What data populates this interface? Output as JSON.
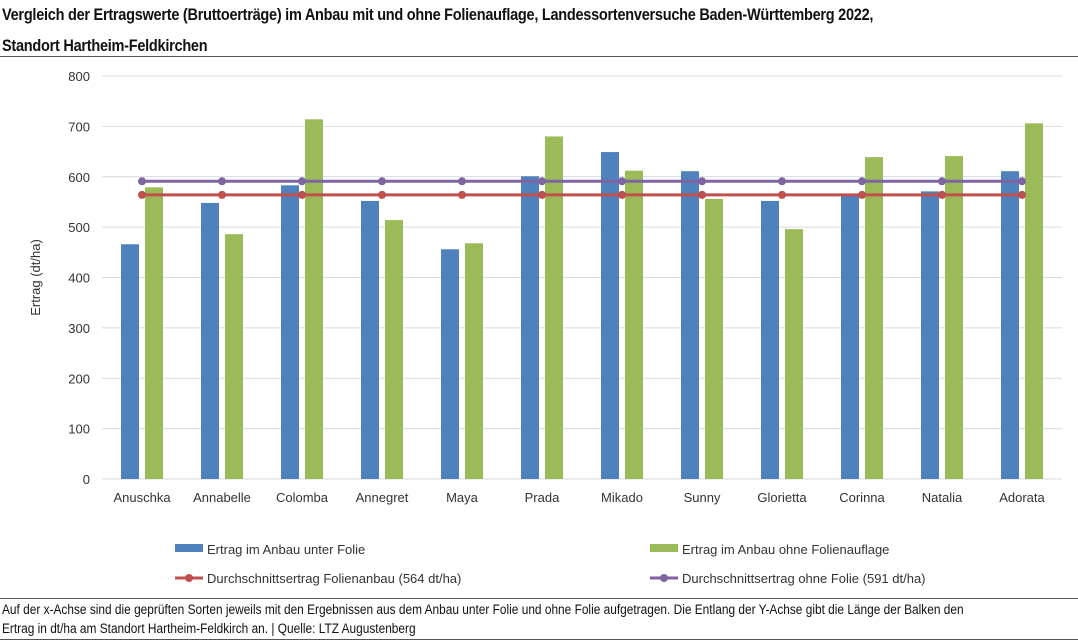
{
  "header": {
    "title_line1": "Vergleich der Ertragswerte (Bruttoerträge) im Anbau mit und ohne Folienauflage, Landessortenversuche Baden-Württemberg 2022,",
    "title_line2": "Standort Hartheim-Feldkirchen"
  },
  "caption": {
    "line1": "Auf der x-Achse sind die geprüften Sorten jeweils mit den Ergebnissen aus dem Anbau unter Folie und ohne Folie aufgetragen. Die Entlang der Y-Achse gibt die Länge der Balken den",
    "line2": "Ertrag in dt/ha am Standort Hartheim-Feldkirch an.  |  Quelle: LTZ Augustenberg"
  },
  "chart_data": {
    "type": "bar",
    "title": "Vergleich der Ertragswerte (Bruttoerträge) im Anbau mit und ohne Folienauflage, Landessortenversuche Baden-Württemberg 2022, Standort Hartheim-Feldkirchen",
    "xlabel": "",
    "ylabel": "Ertrag (dt/ha)",
    "ylim": [
      0,
      800
    ],
    "yticks": [
      0,
      100,
      200,
      300,
      400,
      500,
      600,
      700,
      800
    ],
    "grid": true,
    "legend_position": "bottom",
    "categories": [
      "Anuschka",
      "Annabelle",
      "Colomba",
      "Annegret",
      "Maya",
      "Prada",
      "Mikado",
      "Sunny",
      "Glorietta",
      "Corinna",
      "Natalia",
      "Adorata"
    ],
    "series": [
      {
        "name": "Ertrag im Anbau unter Folie",
        "type": "bar",
        "color": "#4f81bd",
        "values": [
          466,
          548,
          583,
          552,
          456,
          601,
          649,
          611,
          552,
          563,
          571,
          611
        ]
      },
      {
        "name": "Ertrag im Anbau ohne Folienauflage",
        "type": "bar",
        "color": "#9bbb59",
        "values": [
          579,
          486,
          714,
          514,
          468,
          680,
          612,
          556,
          496,
          639,
          641,
          706
        ]
      },
      {
        "name": "Durchschnittsertrag Folienanbau (564 dt/ha)",
        "type": "line",
        "color": "#c0504d",
        "values": [
          564,
          564,
          564,
          564,
          564,
          564,
          564,
          564,
          564,
          564,
          564,
          564
        ]
      },
      {
        "name": "Durchschnittsertrag ohne Folie (591 dt/ha)",
        "type": "line",
        "color": "#8064a2",
        "values": [
          591,
          591,
          591,
          591,
          591,
          591,
          591,
          591,
          591,
          591,
          591,
          591
        ]
      }
    ]
  }
}
